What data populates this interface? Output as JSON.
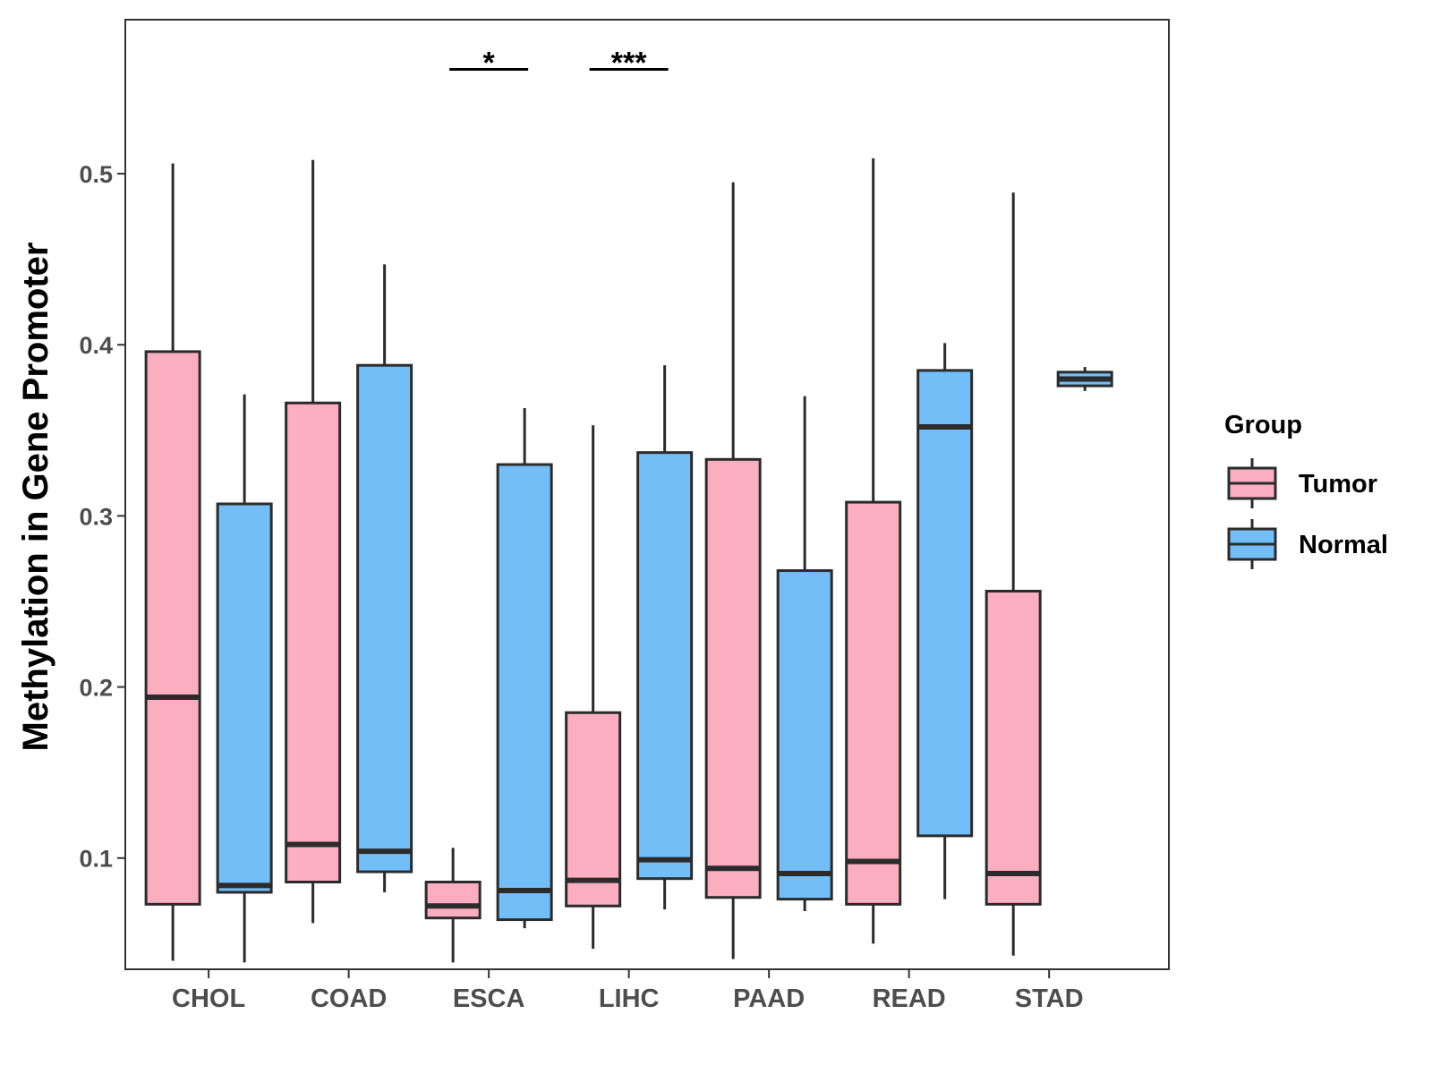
{
  "chart_data": {
    "type": "boxplot",
    "title": "",
    "xlabel": "",
    "ylabel": "Methylation in Gene Promoter",
    "ylim": [
      0.035,
      0.59
    ],
    "yticks": [
      0.1,
      0.2,
      0.3,
      0.4,
      0.5
    ],
    "ytick_labels": [
      "0.1",
      "0.2",
      "0.3",
      "0.4",
      "0.5"
    ],
    "categories": [
      "CHOL",
      "COAD",
      "ESCA",
      "LIHC",
      "PAAD",
      "READ",
      "STAD"
    ],
    "legend": {
      "title": "Group",
      "position": "right"
    },
    "series": [
      {
        "name": "Tumor",
        "color": "#FBAEC0",
        "boxes": [
          {
            "category": "CHOL",
            "min": 0.04,
            "q1": 0.073,
            "median": 0.194,
            "q3": 0.396,
            "max": 0.506
          },
          {
            "category": "COAD",
            "min": 0.062,
            "q1": 0.086,
            "median": 0.108,
            "q3": 0.366,
            "max": 0.508
          },
          {
            "category": "ESCA",
            "min": 0.039,
            "q1": 0.065,
            "median": 0.072,
            "q3": 0.086,
            "max": 0.106
          },
          {
            "category": "LIHC",
            "min": 0.047,
            "q1": 0.072,
            "median": 0.087,
            "q3": 0.185,
            "max": 0.353
          },
          {
            "category": "PAAD",
            "min": 0.041,
            "q1": 0.077,
            "median": 0.094,
            "q3": 0.333,
            "max": 0.495
          },
          {
            "category": "READ",
            "min": 0.05,
            "q1": 0.073,
            "median": 0.098,
            "q3": 0.308,
            "max": 0.509
          },
          {
            "category": "STAD",
            "min": 0.043,
            "q1": 0.073,
            "median": 0.091,
            "q3": 0.256,
            "max": 0.489
          }
        ]
      },
      {
        "name": "Normal",
        "color": "#74BEF7",
        "boxes": [
          {
            "category": "CHOL",
            "min": 0.039,
            "q1": 0.08,
            "median": 0.084,
            "q3": 0.307,
            "max": 0.371
          },
          {
            "category": "COAD",
            "min": 0.08,
            "q1": 0.092,
            "median": 0.104,
            "q3": 0.388,
            "max": 0.447
          },
          {
            "category": "ESCA",
            "min": 0.059,
            "q1": 0.064,
            "median": 0.081,
            "q3": 0.33,
            "max": 0.363
          },
          {
            "category": "LIHC",
            "min": 0.07,
            "q1": 0.088,
            "median": 0.099,
            "q3": 0.337,
            "max": 0.388
          },
          {
            "category": "PAAD",
            "min": 0.069,
            "q1": 0.076,
            "median": 0.091,
            "q3": 0.268,
            "max": 0.37
          },
          {
            "category": "READ",
            "min": 0.076,
            "q1": 0.113,
            "median": 0.352,
            "q3": 0.385,
            "max": 0.401
          },
          {
            "category": "STAD",
            "min": 0.373,
            "q1": 0.376,
            "median": 0.38,
            "q3": 0.384,
            "max": 0.387
          }
        ]
      }
    ],
    "annotations": [
      {
        "category": "ESCA",
        "label": "*",
        "y": 0.561
      },
      {
        "category": "LIHC",
        "label": "***",
        "y": 0.561
      }
    ]
  }
}
